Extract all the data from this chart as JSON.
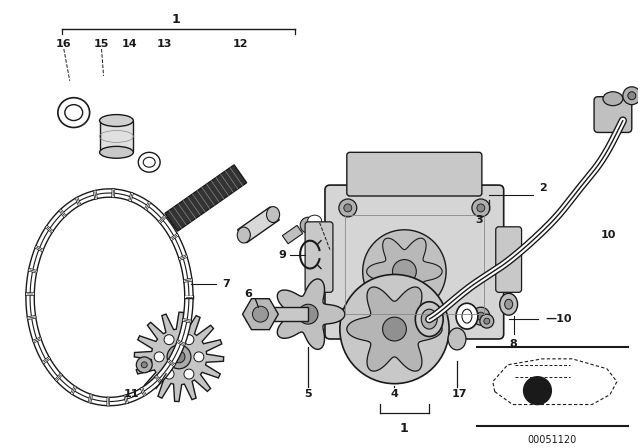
{
  "bg_color": "#ffffff",
  "fig_width": 6.4,
  "fig_height": 4.48,
  "dpi": 100,
  "diagram_code_text": "00051120"
}
